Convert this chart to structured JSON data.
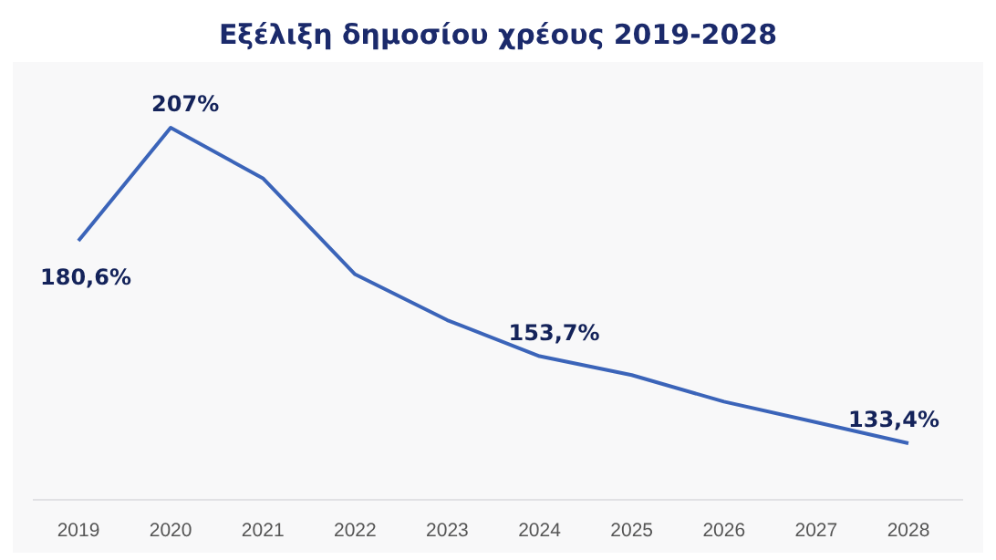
{
  "chart_data": {
    "type": "line",
    "title": "Εξέλιξη δημοσίου χρέους 2019-2028",
    "categories": [
      "2019",
      "2020",
      "2021",
      "2022",
      "2023",
      "2024",
      "2025",
      "2026",
      "2027",
      "2028"
    ],
    "series": [
      {
        "color": "#3b64b9",
        "values": [
          180.6,
          207,
          195.2,
          172.8,
          162.1,
          153.7,
          149.3,
          143.1,
          138.3,
          133.4
        ],
        "value_labels": [
          "180,6%",
          "207%",
          null,
          null,
          null,
          "153,7%",
          null,
          null,
          null,
          "133,4%"
        ]
      }
    ],
    "line_style": "solid"
  }
}
